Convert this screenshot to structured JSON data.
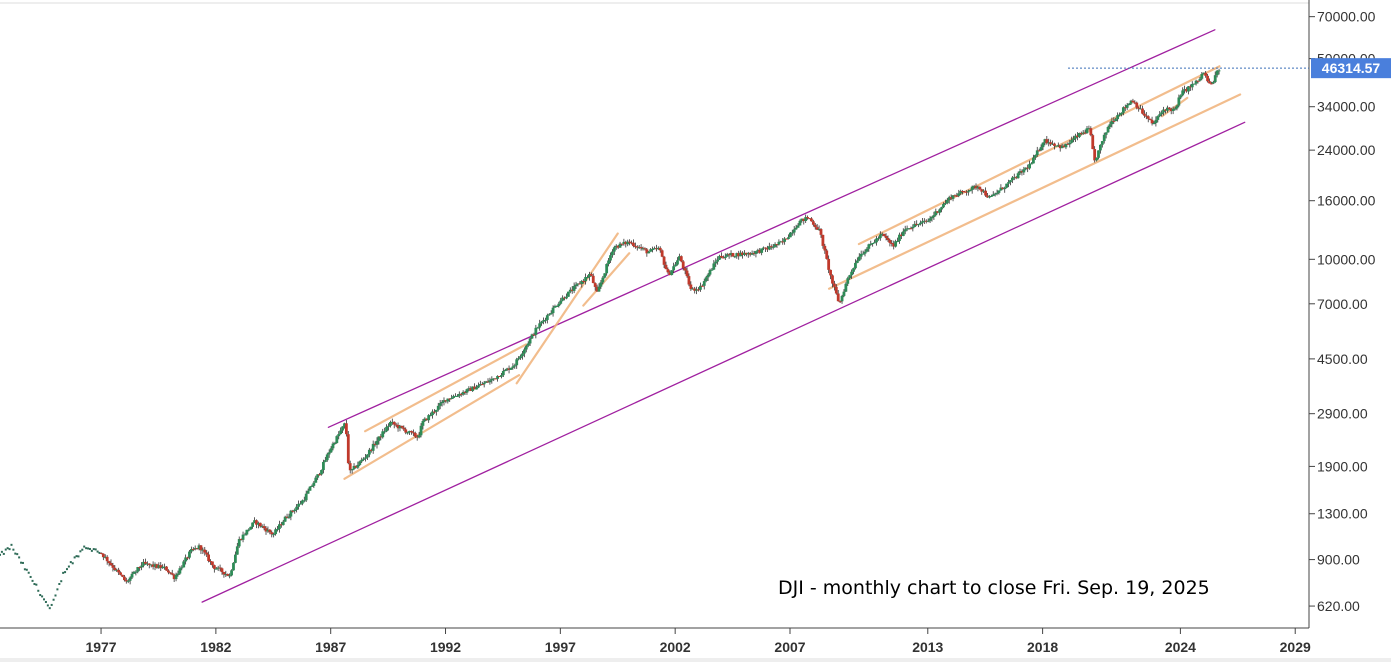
{
  "chart_data": {
    "type": "candlestick",
    "scale": "log",
    "ylim": [
      520,
      80000
    ],
    "xlim": [
      1972.6,
      2029.6
    ],
    "y_ticks": [
      70000,
      50000,
      34000,
      24000,
      16000,
      10000,
      7000,
      4500,
      2900,
      1900,
      1300,
      900,
      620
    ],
    "y_tick_labels": [
      "70000.00",
      "50000.00",
      "34000.00",
      "24000.00",
      "16000.00",
      "10000.00",
      "7000.00",
      "4500.00",
      "2900.00",
      "1900.00",
      "1300.00",
      "900.00",
      "620.00"
    ],
    "x_ticks": [
      1977,
      1982,
      1987,
      1992,
      1997,
      2002,
      2007,
      2013,
      2018,
      2024,
      2029
    ],
    "x_tick_labels": [
      "1977",
      "1982",
      "1987",
      "1992",
      "1997",
      "2002",
      "2007",
      "2013",
      "2018",
      "2024",
      "2029"
    ],
    "last_price": 46314.57,
    "last_price_label": "46314.57",
    "annotation": "DJI - monthly chart to close Fri. Sep. 19, 2025",
    "colors": {
      "up": "#2e8b57",
      "down": "#c0392b",
      "primary_channel": "#a020a0",
      "secondary_channel": "#f0b27a",
      "price_line": "#3b6fb6",
      "price_tag": "#4a7fdc"
    },
    "anchors": [
      [
        1972.6,
        930
      ],
      [
        1973.1,
        1000
      ],
      [
        1974.3,
        700
      ],
      [
        1974.8,
        600
      ],
      [
        1975.4,
        820
      ],
      [
        1976.3,
        1000
      ],
      [
        1977.0,
        950
      ],
      [
        1977.8,
        800
      ],
      [
        1978.1,
        750
      ],
      [
        1978.8,
        870
      ],
      [
        1979.8,
        840
      ],
      [
        1980.2,
        780
      ],
      [
        1980.9,
        960
      ],
      [
        1981.3,
        1000
      ],
      [
        1981.9,
        850
      ],
      [
        1982.6,
        790
      ],
      [
        1983.0,
        1050
      ],
      [
        1983.7,
        1220
      ],
      [
        1984.5,
        1100
      ],
      [
        1985.0,
        1250
      ],
      [
        1985.8,
        1450
      ],
      [
        1986.5,
        1800
      ],
      [
        1987.0,
        2200
      ],
      [
        1987.65,
        2700
      ],
      [
        1987.8,
        1800
      ],
      [
        1988.5,
        2050
      ],
      [
        1989.6,
        2700
      ],
      [
        1990.8,
        2400
      ],
      [
        1991.0,
        2700
      ],
      [
        1992.0,
        3250
      ],
      [
        1993.0,
        3500
      ],
      [
        1994.0,
        3800
      ],
      [
        1995.0,
        4300
      ],
      [
        1996.0,
        5800
      ],
      [
        1997.0,
        7200
      ],
      [
        1998.3,
        8900
      ],
      [
        1998.6,
        7600
      ],
      [
        1999.3,
        11000
      ],
      [
        2000.0,
        11500
      ],
      [
        2000.8,
        10600
      ],
      [
        2001.3,
        10900
      ],
      [
        2001.7,
        8800
      ],
      [
        2002.2,
        10200
      ],
      [
        2002.7,
        7800
      ],
      [
        2003.1,
        8000
      ],
      [
        2003.9,
        10200
      ],
      [
        2004.6,
        10400
      ],
      [
        2005.3,
        10500
      ],
      [
        2006.0,
        10900
      ],
      [
        2006.7,
        11500
      ],
      [
        2007.4,
        13500
      ],
      [
        2007.8,
        14000
      ],
      [
        2008.3,
        12500
      ],
      [
        2008.8,
        8500
      ],
      [
        2009.15,
        7000
      ],
      [
        2009.5,
        8500
      ],
      [
        2010.0,
        10300
      ],
      [
        2011.0,
        12200
      ],
      [
        2011.5,
        11100
      ],
      [
        2012.0,
        12800
      ],
      [
        2013.0,
        13600
      ],
      [
        2014.0,
        16500
      ],
      [
        2015.2,
        18000
      ],
      [
        2015.7,
        16300
      ],
      [
        2016.5,
        18400
      ],
      [
        2017.5,
        21500
      ],
      [
        2018.05,
        26000
      ],
      [
        2018.9,
        24500
      ],
      [
        2019.5,
        26800
      ],
      [
        2020.05,
        28500
      ],
      [
        2020.25,
        21800
      ],
      [
        2020.9,
        29600
      ],
      [
        2021.9,
        36000
      ],
      [
        2022.4,
        32000
      ],
      [
        2022.8,
        29500
      ],
      [
        2023.3,
        33500
      ],
      [
        2023.8,
        33100
      ],
      [
        2024.0,
        37700
      ],
      [
        2024.8,
        42000
      ],
      [
        2025.0,
        44900
      ],
      [
        2025.3,
        40000
      ],
      [
        2025.7,
        46314.57
      ]
    ],
    "channels": [
      {
        "name": "",
        "kind": "primary",
        "points": [
          [
            1981.4,
            640
          ],
          [
            2026.8,
            30000
          ]
        ]
      },
      {
        "name": "",
        "kind": "primary",
        "points": [
          [
            1986.9,
            2600
          ],
          [
            2025.5,
            63000
          ]
        ]
      },
      {
        "name": "",
        "kind": "secondary",
        "points": [
          [
            1987.6,
            1720
          ],
          [
            1995.2,
            3950
          ]
        ]
      },
      {
        "name": "",
        "kind": "secondary",
        "points": [
          [
            1988.5,
            2520
          ],
          [
            1995.5,
            5050
          ]
        ]
      },
      {
        "name": "",
        "kind": "secondary",
        "points": [
          [
            1995.1,
            3700
          ],
          [
            1999.5,
            12300
          ]
        ]
      },
      {
        "name": "",
        "kind": "secondary",
        "points": [
          [
            1998.0,
            6900
          ],
          [
            2000.0,
            10500
          ]
        ]
      },
      {
        "name": "",
        "kind": "secondary",
        "points": [
          [
            2008.7,
            7900
          ],
          [
            2026.6,
            37500
          ]
        ]
      },
      {
        "name": "",
        "kind": "secondary",
        "points": [
          [
            2010.0,
            11300
          ],
          [
            2025.7,
            47000
          ]
        ]
      },
      {
        "name": "",
        "kind": "secondary",
        "points": [
          [
            2023.2,
            31500
          ],
          [
            2024.3,
            36500
          ]
        ]
      }
    ]
  }
}
